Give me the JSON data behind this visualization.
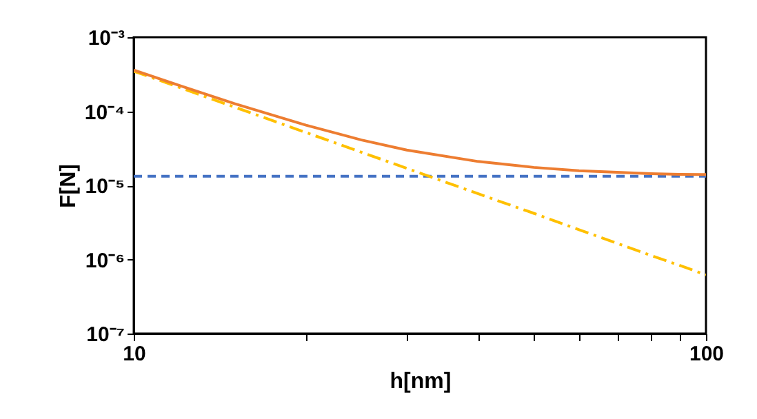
{
  "chart_data": {
    "type": "line",
    "xlabel": "h[nm]",
    "ylabel": "F[N]",
    "log": "xy",
    "xlim": [
      10,
      100
    ],
    "ylim": [
      1e-07,
      0.001
    ],
    "xticks": [
      10,
      {
        "value": 20,
        "label": null
      },
      {
        "value": 30,
        "label": null
      },
      {
        "value": 40,
        "label": null
      },
      {
        "value": 50,
        "label": null
      },
      {
        "value": 60,
        "label": null
      },
      {
        "value": 70,
        "label": null
      },
      {
        "value": 80,
        "label": null
      },
      {
        "value": 90,
        "label": null
      },
      100
    ],
    "yticks": [
      {
        "value": 1e-07,
        "label": "10⁻⁷"
      },
      {
        "value": 1e-06,
        "label": "10⁻⁶"
      },
      {
        "value": 1e-05,
        "label": "10⁻⁵"
      },
      {
        "value": 0.0001,
        "label": "10⁻⁴"
      },
      {
        "value": 0.001,
        "label": "10⁻³"
      }
    ],
    "x": [
      10,
      12,
      15,
      20,
      25,
      30,
      40,
      50,
      60,
      70,
      80,
      90,
      100
    ],
    "series": [
      {
        "color": "#4472c4",
        "line_style": "dashed",
        "values": [
          1.33e-05,
          1.33e-05,
          1.33e-05,
          1.33e-05,
          1.33e-05,
          1.33e-05,
          1.33e-05,
          1.33e-05,
          1.33e-05,
          1.33e-05,
          1.33e-05,
          1.33e-05,
          1.33e-05
        ]
      },
      {
        "color": "#ffc000",
        "line_style": "dashdot",
        "values": [
          0.000348,
          0.000211,
          0.000114,
          5.17e-05,
          2.8e-05,
          1.7e-05,
          7.7e-06,
          4.2e-06,
          2.52e-06,
          1.65e-06,
          1.14e-06,
          8.3e-07,
          6.2e-07
        ]
      },
      {
        "color": "#ed7d31",
        "line_style": "solid",
        "values": [
          0.000361,
          0.000224,
          0.000127,
          6.5e-05,
          4.1e-05,
          3e-05,
          2.1e-05,
          1.75e-05,
          1.58e-05,
          1.5e-05,
          1.44e-05,
          1.41e-05,
          1.4e-05
        ]
      }
    ]
  }
}
